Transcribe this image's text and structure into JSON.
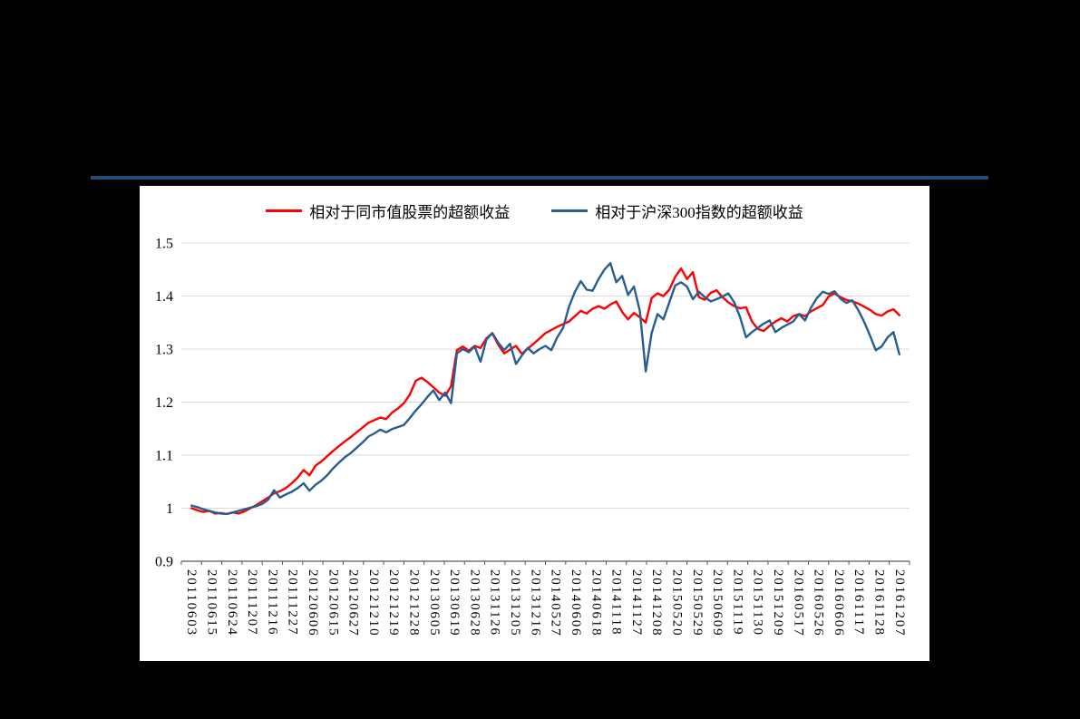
{
  "style": {
    "background": "#000000",
    "panel_bg": "#FFFFFF",
    "divider_color": "#1F4E79",
    "grid_color": "#D9D9D9",
    "axis_color": "#595959",
    "tick_label_color": "#000000"
  },
  "chart_data": {
    "type": "line",
    "title": "",
    "xlabel": "",
    "ylabel": "",
    "ylim": [
      0.9,
      1.5
    ],
    "y_tick_labels": [
      "1.5",
      "1.4",
      "1.3",
      "1.2",
      "1.1",
      "1",
      "0.9"
    ],
    "grid": "horizontal-only",
    "legend_position": "top-center",
    "x_label_rotation_deg": 90,
    "x_sampling": "uniform",
    "x_tick_labels": [
      "20110603",
      "20110615",
      "20110624",
      "20111207",
      "20111216",
      "20111227",
      "20120606",
      "20120615",
      "20120627",
      "20121210",
      "20121219",
      "20121228",
      "20130605",
      "20130619",
      "20130628",
      "20131126",
      "20131205",
      "20131216",
      "20140527",
      "20140606",
      "20140618",
      "20141118",
      "20141127",
      "20141208",
      "20150520",
      "20150529",
      "20150609",
      "20151119",
      "20151130",
      "20151209",
      "20160517",
      "20160526",
      "20160606",
      "20161117",
      "20161128",
      "20161207"
    ],
    "series": [
      {
        "name": "相对于同市值股票的超额收益",
        "color": "#FF0000",
        "values": [
          1.0,
          0.996,
          0.993,
          0.995,
          0.99,
          0.991,
          0.989,
          0.992,
          0.99,
          0.994,
          1.0,
          1.006,
          1.013,
          1.02,
          1.028,
          1.032,
          1.038,
          1.047,
          1.058,
          1.072,
          1.062,
          1.08,
          1.088,
          1.098,
          1.108,
          1.117,
          1.126,
          1.134,
          1.143,
          1.152,
          1.161,
          1.166,
          1.171,
          1.168,
          1.18,
          1.188,
          1.198,
          1.214,
          1.24,
          1.246,
          1.238,
          1.228,
          1.218,
          1.212,
          1.23,
          1.298,
          1.305,
          1.297,
          1.306,
          1.302,
          1.32,
          1.33,
          1.308,
          1.292,
          1.299,
          1.306,
          1.291,
          1.301,
          1.31,
          1.32,
          1.33,
          1.336,
          1.342,
          1.347,
          1.352,
          1.362,
          1.372,
          1.367,
          1.376,
          1.381,
          1.376,
          1.384,
          1.39,
          1.37,
          1.356,
          1.368,
          1.36,
          1.35,
          1.396,
          1.405,
          1.4,
          1.412,
          1.436,
          1.452,
          1.432,
          1.445,
          1.398,
          1.393,
          1.406,
          1.411,
          1.398,
          1.388,
          1.381,
          1.377,
          1.379,
          1.352,
          1.338,
          1.334,
          1.344,
          1.352,
          1.358,
          1.352,
          1.362,
          1.366,
          1.362,
          1.371,
          1.377,
          1.383,
          1.399,
          1.405,
          1.398,
          1.393,
          1.39,
          1.386,
          1.38,
          1.374,
          1.366,
          1.363,
          1.371,
          1.375,
          1.364
        ]
      },
      {
        "name": "相对于沪深300指数的超额收益",
        "color": "#255E91",
        "values": [
          1.005,
          1.002,
          0.998,
          0.995,
          0.992,
          0.99,
          0.989,
          0.992,
          0.995,
          0.998,
          1.001,
          1.004,
          1.008,
          1.016,
          1.034,
          1.02,
          1.026,
          1.031,
          1.038,
          1.047,
          1.033,
          1.044,
          1.052,
          1.062,
          1.075,
          1.086,
          1.096,
          1.104,
          1.114,
          1.124,
          1.135,
          1.141,
          1.148,
          1.143,
          1.149,
          1.153,
          1.157,
          1.17,
          1.184,
          1.196,
          1.21,
          1.222,
          1.204,
          1.218,
          1.198,
          1.292,
          1.3,
          1.294,
          1.305,
          1.276,
          1.318,
          1.33,
          1.312,
          1.298,
          1.31,
          1.272,
          1.288,
          1.302,
          1.292,
          1.3,
          1.306,
          1.298,
          1.322,
          1.34,
          1.38,
          1.408,
          1.428,
          1.412,
          1.41,
          1.432,
          1.45,
          1.462,
          1.426,
          1.438,
          1.402,
          1.418,
          1.372,
          1.258,
          1.33,
          1.366,
          1.356,
          1.388,
          1.42,
          1.426,
          1.418,
          1.394,
          1.408,
          1.398,
          1.39,
          1.394,
          1.399,
          1.405,
          1.388,
          1.36,
          1.322,
          1.332,
          1.34,
          1.348,
          1.354,
          1.332,
          1.34,
          1.346,
          1.352,
          1.366,
          1.354,
          1.378,
          1.396,
          1.408,
          1.404,
          1.409,
          1.395,
          1.387,
          1.392,
          1.374,
          1.352,
          1.326,
          1.298,
          1.305,
          1.322,
          1.332,
          1.29
        ]
      }
    ]
  }
}
